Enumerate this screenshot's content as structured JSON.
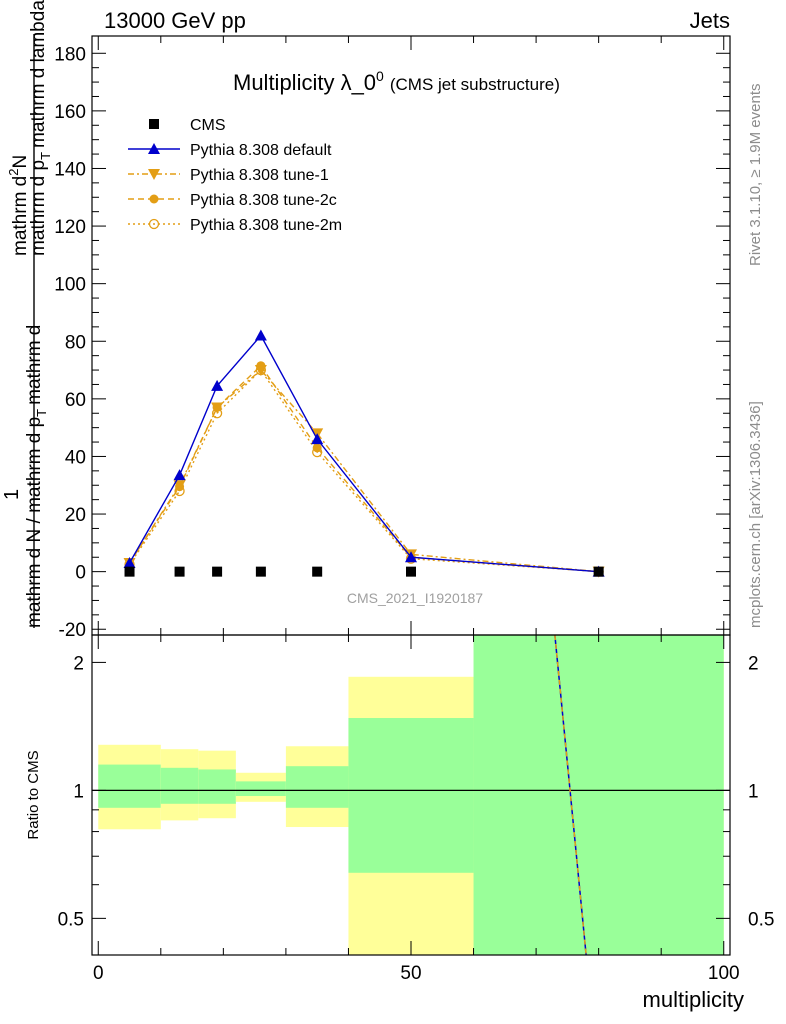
{
  "header": {
    "left": "13000 GeV pp",
    "right": "Jets"
  },
  "title": {
    "main": "Multiplicity λ_0",
    "superscript": "0",
    "sub": "(CMS jet substructure)"
  },
  "side_labels": {
    "rivet": "Rivet 3.1.10, ≥ 1.9M events",
    "mcplots": "mcplots.cern.ch [arXiv:1306.3436]"
  },
  "watermark": "CMS_2021_I1920187",
  "colors": {
    "cms": "#000000",
    "default": "#0000cc",
    "tune": "#e39e15",
    "green_band": "#99ff99",
    "yellow_band": "#ffff99"
  },
  "chart_data": [
    {
      "type": "line",
      "ylabel_numerator": "1",
      "ylabel_denominator": "mathrm d N / mathrm d p_T mathrm d^2N / mathrm d p_T mathrm d lambda",
      "ylabel_frac": {
        "numerator": "1",
        "denominator": "mathrm d N / mathrm d p",
        "rest": "mathrm d",
        "top": "mathrm d",
        "top2": "N",
        "tail": "mathrm d p",
        "tail2": "mathrm d lambda",
        "sub": "T",
        "sup": "2"
      },
      "ylim": [
        -22,
        186
      ],
      "xlim": [
        -1,
        101
      ],
      "yticks": [
        -20,
        0,
        20,
        40,
        60,
        80,
        100,
        120,
        140,
        160,
        180
      ],
      "legend": [
        "CMS",
        "Pythia 8.308 default",
        "Pythia 8.308 tune-1",
        "Pythia 8.308 tune-2c",
        "Pythia 8.308 tune-2m"
      ],
      "series": [
        {
          "name": "CMS",
          "x": [
            5,
            13,
            19,
            26,
            35,
            50,
            80
          ],
          "y": [
            0,
            0,
            0,
            0,
            0,
            0,
            0
          ]
        },
        {
          "name": "Pythia 8.308 default",
          "x": [
            5,
            13,
            19,
            26,
            35,
            50,
            80
          ],
          "y": [
            3,
            33.5,
            64.5,
            82,
            46,
            5,
            0
          ]
        },
        {
          "name": "Pythia 8.308 tune-1",
          "x": [
            5,
            13,
            19,
            26,
            35,
            50,
            80
          ],
          "y": [
            3,
            30,
            57,
            70,
            48,
            6,
            0
          ]
        },
        {
          "name": "Pythia 8.308 tune-2c",
          "x": [
            5,
            13,
            19,
            26,
            35,
            50,
            80
          ],
          "y": [
            3,
            29.5,
            57,
            71.5,
            43,
            5,
            0
          ]
        },
        {
          "name": "Pythia 8.308 tune-2m",
          "x": [
            5,
            13,
            19,
            26,
            35,
            50,
            80
          ],
          "y": [
            2.5,
            28,
            55,
            70,
            41.5,
            4.5,
            0
          ]
        }
      ]
    },
    {
      "type": "area",
      "ylabel": "Ratio to CMS",
      "xlabel": "multiplicity",
      "scale": "log",
      "ylim": [
        0.41,
        2.32
      ],
      "xlim": [
        -1,
        101
      ],
      "xticks": [
        0,
        50,
        100
      ],
      "yticks": [
        0.5,
        1,
        2
      ],
      "bins": [
        {
          "x": [
            0,
            10
          ],
          "green": [
            0.91,
            1.15
          ],
          "yellow": [
            0.81,
            1.28
          ]
        },
        {
          "x": [
            10,
            16
          ],
          "green": [
            0.93,
            1.13
          ],
          "yellow": [
            0.85,
            1.25
          ]
        },
        {
          "x": [
            16,
            22
          ],
          "green": [
            0.93,
            1.12
          ],
          "yellow": [
            0.86,
            1.24
          ]
        },
        {
          "x": [
            22,
            30
          ],
          "green": [
            0.97,
            1.05
          ],
          "yellow": [
            0.94,
            1.1
          ]
        },
        {
          "x": [
            30,
            40
          ],
          "green": [
            0.91,
            1.14
          ],
          "yellow": [
            0.82,
            1.27
          ]
        },
        {
          "x": [
            40,
            60
          ],
          "green": [
            0.64,
            1.48
          ],
          "yellow": [
            0.4,
            1.85
          ]
        },
        {
          "x": [
            60,
            100
          ],
          "green": [
            0.4,
            2.4
          ],
          "yellow": [
            0.4,
            2.4
          ]
        }
      ],
      "ratio_line": {
        "x": [
          73,
          78
        ],
        "y": [
          2.4,
          0.4
        ]
      }
    }
  ]
}
